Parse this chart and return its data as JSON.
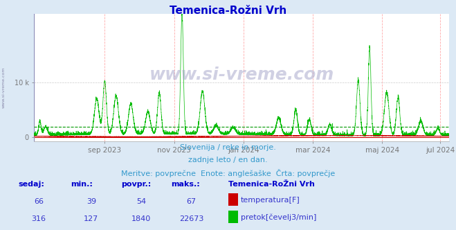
{
  "title": "Temenica-Rožni Vrh",
  "title_color": "#0000cc",
  "title_fontsize": 11,
  "bg_color": "#dce9f5",
  "plot_bg_color": "#ffffff",
  "y_max": 22673,
  "y_tick_value": 10000,
  "y_tick_label": "10 k",
  "avg_line_value": 1840,
  "avg_line_color": "#009900",
  "temp_line_color": "#cc0000",
  "flow_line_color": "#00bb00",
  "grid_color_v": "#ffaaaa",
  "grid_color_h": "#cccccc",
  "subtitle_lines": [
    "Slovenija / reke in morje.",
    "zadnje leto / en dan.",
    "Meritve: povprečne  Enote: anglešaške  Črta: povprečje"
  ],
  "subtitle_color": "#3399cc",
  "subtitle_fontsize": 8,
  "x_tick_labels": [
    "sep 2023",
    "nov 2023",
    "jan 2024",
    "mar 2024",
    "maj 2024",
    "jul 2024"
  ],
  "x_tick_day_positions": [
    62,
    123,
    184,
    245,
    306,
    357
  ],
  "legend_title": "Temenica-RoŽni Vrh",
  "legend_items": [
    {
      "label": "temperatura[F]",
      "color": "#cc0000"
    },
    {
      "label": "pretok[čevelj3/min]",
      "color": "#00bb00"
    }
  ],
  "table_headers": [
    "sedaj:",
    "min.:",
    "povpr.:",
    "maks.:"
  ],
  "table_row1": [
    "66",
    "39",
    "54",
    "67"
  ],
  "table_row2": [
    "316",
    "127",
    "1840",
    "22673"
  ],
  "table_header_color": "#0000cc",
  "table_value_color": "#3333cc",
  "table_fontsize": 8,
  "watermark_text": "www.si-vreme.com",
  "sidewmark_text": "www.si-vreme.com"
}
